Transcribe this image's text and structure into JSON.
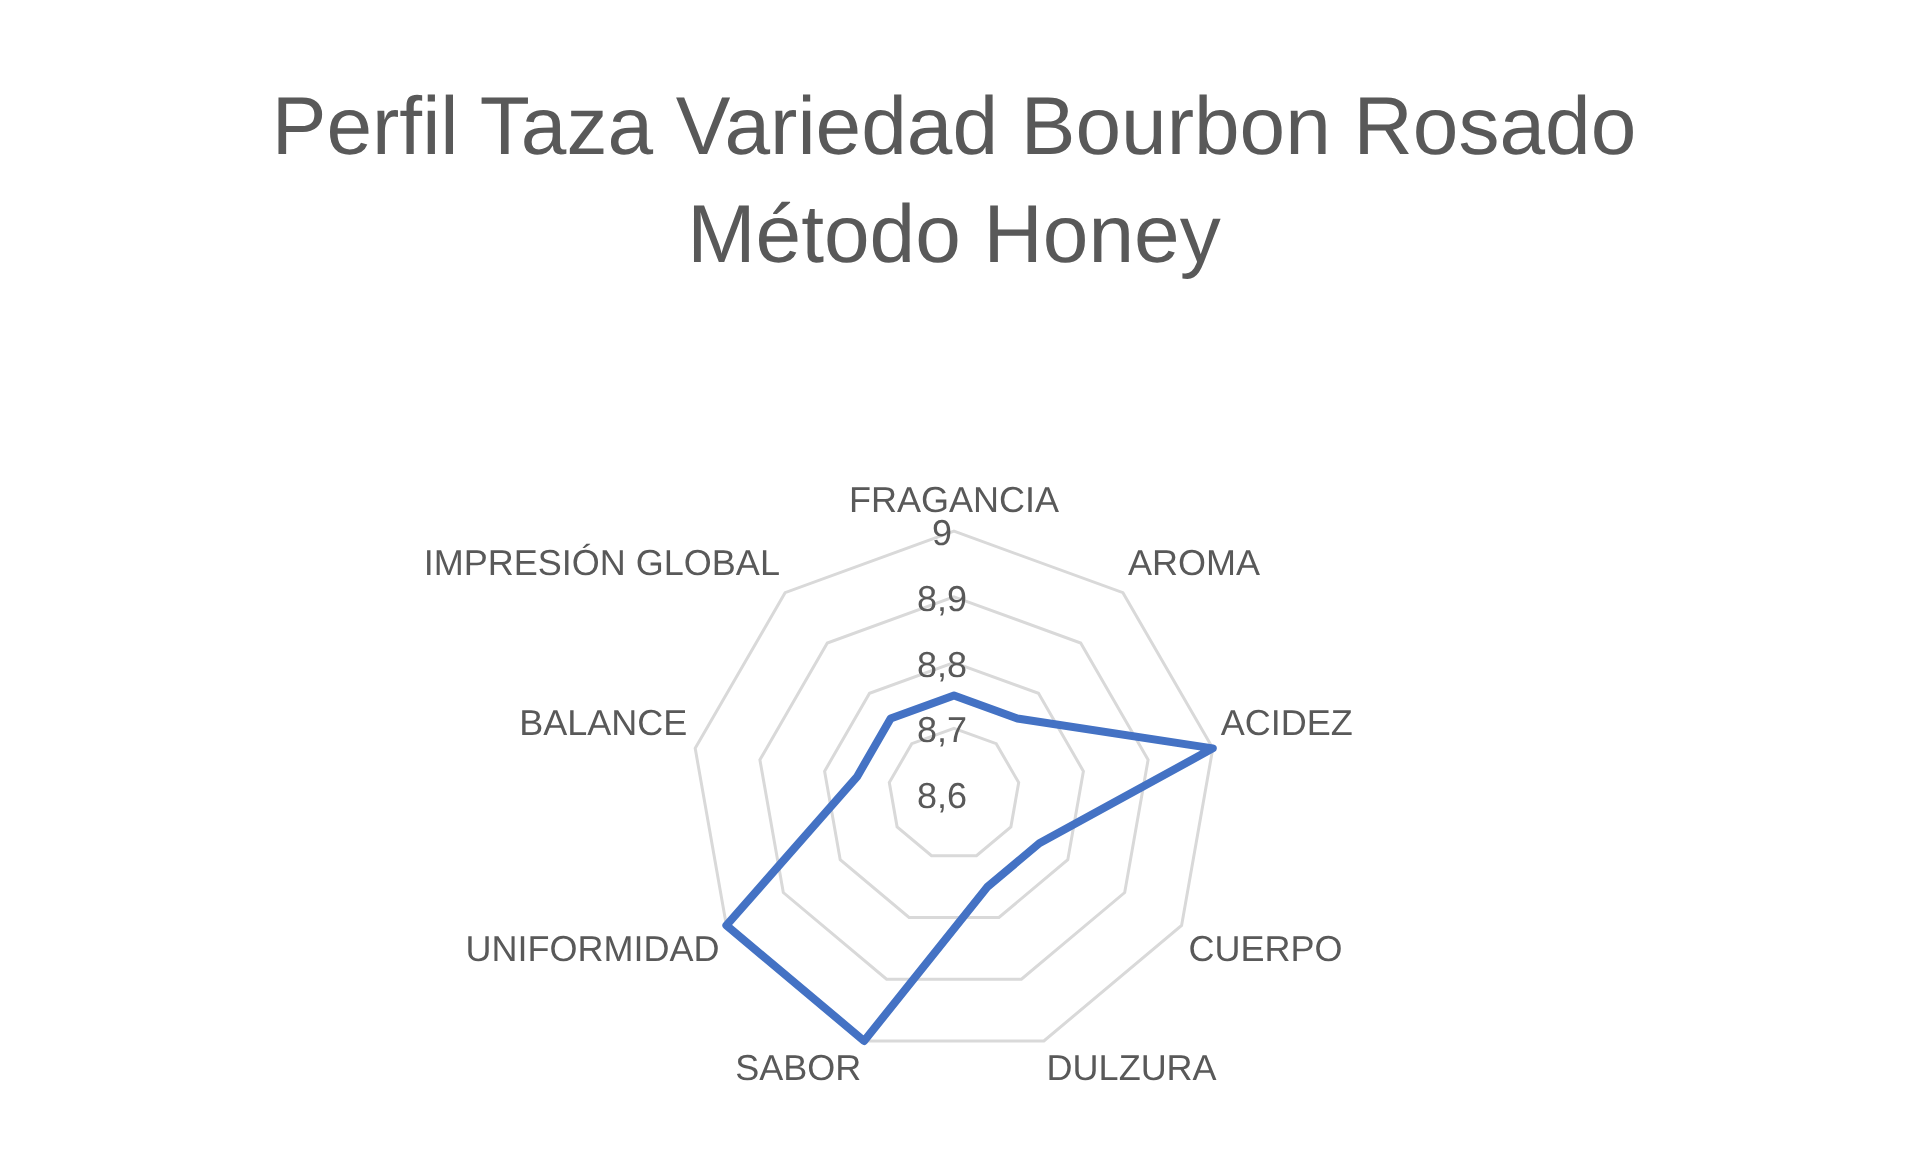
{
  "chart_data": {
    "type": "radar",
    "title": "Perfil Taza Variedad Bourbon Rosado Método Honey",
    "categories": [
      "FRAGANCIA",
      "AROMA",
      "ACIDEZ",
      "CUERPO",
      "DULZURA",
      "SABOR",
      "UNIFORMIDAD",
      "BALANCE",
      "IMPRESIÓN GLOBAL"
    ],
    "series": [
      {
        "color": "#4472c4",
        "values": [
          8.75,
          8.75,
          9,
          8.75,
          8.75,
          9,
          9,
          8.75,
          8.75
        ]
      }
    ],
    "ylim": [
      8.6,
      9
    ],
    "yticks": [
      {
        "value": 8.6,
        "label": "8,6"
      },
      {
        "value": 8.7,
        "label": "8,7"
      },
      {
        "value": 8.8,
        "label": "8,8"
      },
      {
        "value": 8.9,
        "label": "8,9"
      },
      {
        "value": 9,
        "label": "9"
      }
    ],
    "grid": true,
    "legend": false,
    "marker": "none"
  }
}
